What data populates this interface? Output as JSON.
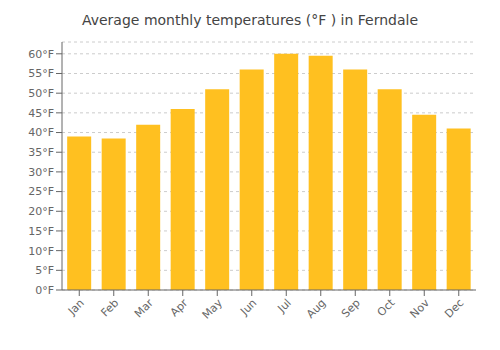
{
  "chart_data": {
    "type": "bar",
    "title": "Average monthly temperatures (°F ) in Ferndale",
    "categories": [
      "Jan",
      "Feb",
      "Mar",
      "Apr",
      "May",
      "Jun",
      "Jul",
      "Aug",
      "Sep",
      "Oct",
      "Nov",
      "Dec"
    ],
    "values": [
      39,
      38.5,
      42,
      46,
      51,
      56,
      60,
      59.5,
      56,
      51,
      44.5,
      41
    ],
    "color": "#FFC020",
    "ylim": [
      0,
      63
    ],
    "yticks": [
      {
        "value": 0,
        "label": "0°F"
      },
      {
        "value": 5,
        "label": "5°F"
      },
      {
        "value": 10,
        "label": "10°F"
      },
      {
        "value": 15,
        "label": "15°F"
      },
      {
        "value": 20,
        "label": "20°F"
      },
      {
        "value": 25,
        "label": "25°F"
      },
      {
        "value": 30,
        "label": "30°F"
      },
      {
        "value": 35,
        "label": "35°F"
      },
      {
        "value": 40,
        "label": "40°F"
      },
      {
        "value": 45,
        "label": "45°F"
      },
      {
        "value": 50,
        "label": "50°F"
      },
      {
        "value": 55,
        "label": "55°F"
      },
      {
        "value": 60,
        "label": "60°F"
      }
    ],
    "grid": true
  }
}
